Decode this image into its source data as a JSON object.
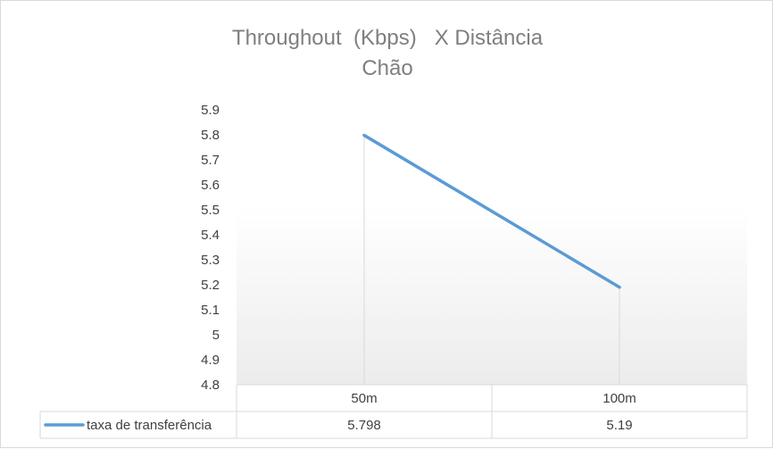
{
  "chart_data": {
    "type": "line",
    "title": "Throughout  (Kbps)   X Distância",
    "subtitle": "Chão",
    "categories": [
      "50m",
      "100m"
    ],
    "series": [
      {
        "name": "taxa de transferência",
        "values": [
          5.798,
          5.19
        ],
        "value_labels": [
          "5.798",
          "5.19"
        ],
        "color": "#5b9bd5"
      }
    ],
    "y_ticks": [
      "5.9",
      "5.8",
      "5.7",
      "5.6",
      "5.5",
      "5.4",
      "5.3",
      "5.2",
      "5.1",
      "5",
      "4.9",
      "4.8"
    ],
    "ylim": [
      4.8,
      5.9
    ],
    "y_step": 0.1,
    "grid": false,
    "data_table": true,
    "legend": "data-table"
  }
}
